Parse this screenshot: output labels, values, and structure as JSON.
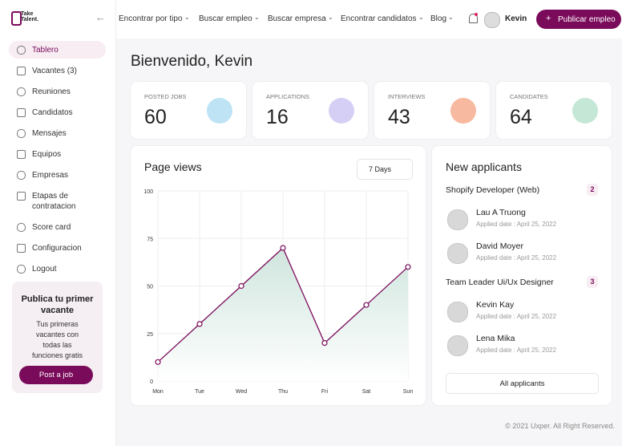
{
  "logo": [
    "Take",
    "Talent."
  ],
  "sidebar": {
    "items": [
      "Tablero",
      "Vacantes (3)",
      "Reuniones",
      "Candidatos",
      "Mensajes",
      "Equipos",
      "Empresas",
      "Etapas de contratacion",
      "Score card",
      "Configuracion",
      "Logout"
    ],
    "promo": {
      "title": "Publica tu primer vacante",
      "text": "Tus primeras vacantes con todas las funciones gratis",
      "button": "Post a job"
    }
  },
  "nav": {
    "items": [
      "Encontrar por tipo",
      "Buscar empleo",
      "Buscar empresa",
      "Encontrar candidatos",
      "Blog"
    ],
    "user": "Kevin",
    "button": "Publicar empleo"
  },
  "welcome": "Bienvenido, Kevin",
  "stats": [
    {
      "label": "POSTED JOBS",
      "value": 60
    },
    {
      "label": "APPLICATIONS",
      "value": 16
    },
    {
      "label": "INTERVIEWS",
      "value": 43
    },
    {
      "label": "CANDIDATES",
      "value": 64
    }
  ],
  "page_views": {
    "type": "line",
    "title": "Page views",
    "range": "7 Days",
    "categories": [
      "Mon",
      "Tue",
      "Wed",
      "Thu",
      "Fri",
      "Sat",
      "Sun"
    ],
    "values": [
      10,
      30,
      50,
      70,
      20,
      40,
      60
    ],
    "color": "#7a0a5a",
    "ylim": [
      0,
      100
    ],
    "yticks": [
      0,
      25,
      50,
      75,
      100
    ],
    "grid": true
  },
  "applicants": {
    "title": "New applicants",
    "groups": [
      {
        "title": "Shopify Developer (Web)",
        "count": 2,
        "people": [
          {
            "name": "Lau A Truong",
            "date": "Applied date : April 25, 2022"
          },
          {
            "name": "David Moyer",
            "date": "Applied date : April 25, 2022"
          }
        ]
      },
      {
        "title": "Team Leader Ui/Ux Designer",
        "count": 3,
        "people": [
          {
            "name": "Kevin Kay",
            "date": "Applied date : April 25, 2022"
          },
          {
            "name": "Lena Mika",
            "date": "Applied date : April 25, 2022"
          }
        ]
      }
    ],
    "button": "All applicants"
  },
  "footer": "© 2021 Uxper. All Right Reserved."
}
